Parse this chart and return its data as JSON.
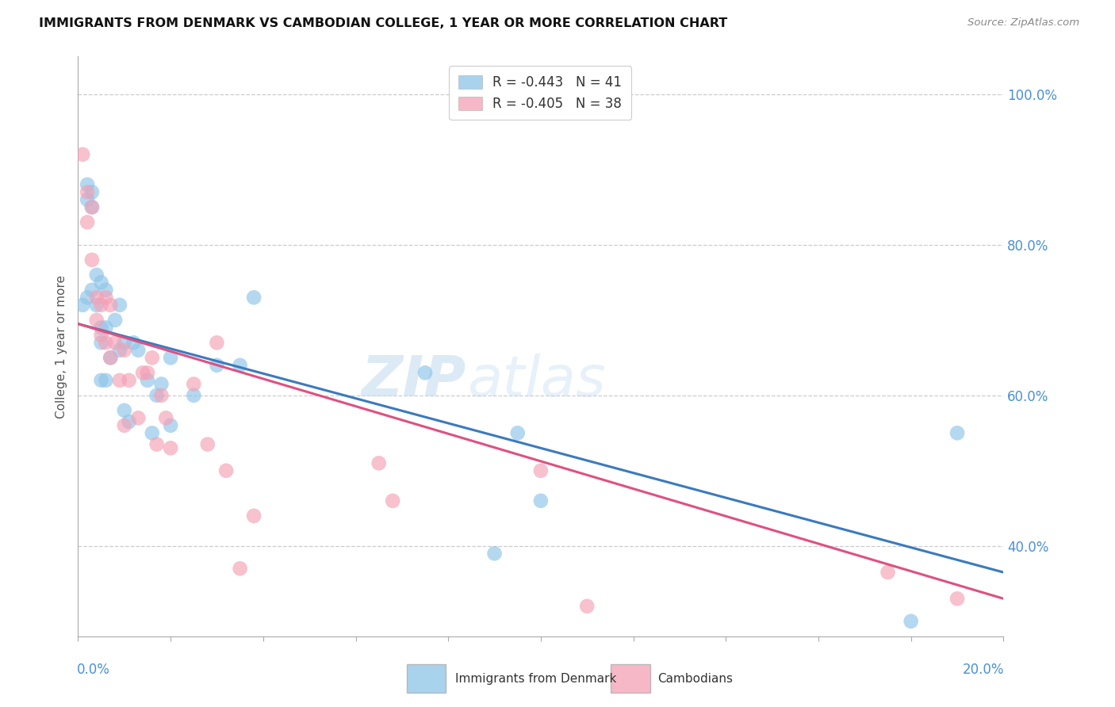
{
  "title": "IMMIGRANTS FROM DENMARK VS CAMBODIAN COLLEGE, 1 YEAR OR MORE CORRELATION CHART",
  "source": "Source: ZipAtlas.com",
  "ylabel": "College, 1 year or more",
  "right_yticks": [
    "100.0%",
    "80.0%",
    "60.0%",
    "40.0%"
  ],
  "right_ytick_vals": [
    1.0,
    0.8,
    0.6,
    0.4
  ],
  "xmin": 0.0,
  "xmax": 0.2,
  "ymin": 0.28,
  "ymax": 1.05,
  "denmark_R": -0.443,
  "denmark_N": 41,
  "cambodian_R": -0.405,
  "cambodian_N": 38,
  "legend_label1": "R = -0.443   N = 41",
  "legend_label2": "R = -0.405   N = 38",
  "denmark_color": "#8dc4e8",
  "cambodian_color": "#f4a0b5",
  "denmark_line_color": "#3a7abf",
  "cambodian_line_color": "#e05080",
  "watermark_zip": "ZIP",
  "watermark_atlas": "atlas",
  "denmark_line_x0": 0.0,
  "denmark_line_y0": 0.695,
  "denmark_line_x1": 0.2,
  "denmark_line_y1": 0.365,
  "cambodian_line_x0": 0.0,
  "cambodian_line_y0": 0.695,
  "cambodian_line_x1": 0.2,
  "cambodian_line_y1": 0.33,
  "denmark_x": [
    0.001,
    0.002,
    0.002,
    0.002,
    0.003,
    0.003,
    0.003,
    0.004,
    0.004,
    0.005,
    0.005,
    0.005,
    0.005,
    0.006,
    0.006,
    0.006,
    0.007,
    0.008,
    0.009,
    0.009,
    0.01,
    0.01,
    0.011,
    0.012,
    0.013,
    0.015,
    0.016,
    0.017,
    0.018,
    0.02,
    0.02,
    0.025,
    0.03,
    0.035,
    0.038,
    0.075,
    0.09,
    0.095,
    0.1,
    0.18,
    0.19
  ],
  "denmark_y": [
    0.72,
    0.88,
    0.86,
    0.73,
    0.87,
    0.85,
    0.74,
    0.76,
    0.72,
    0.75,
    0.69,
    0.67,
    0.62,
    0.74,
    0.69,
    0.62,
    0.65,
    0.7,
    0.66,
    0.72,
    0.67,
    0.58,
    0.565,
    0.67,
    0.66,
    0.62,
    0.55,
    0.6,
    0.615,
    0.65,
    0.56,
    0.6,
    0.64,
    0.64,
    0.73,
    0.63,
    0.39,
    0.55,
    0.46,
    0.3,
    0.55
  ],
  "cambodian_x": [
    0.001,
    0.002,
    0.002,
    0.003,
    0.003,
    0.004,
    0.004,
    0.005,
    0.005,
    0.006,
    0.006,
    0.007,
    0.007,
    0.008,
    0.009,
    0.01,
    0.01,
    0.011,
    0.013,
    0.014,
    0.015,
    0.016,
    0.017,
    0.018,
    0.019,
    0.02,
    0.025,
    0.028,
    0.03,
    0.032,
    0.035,
    0.038,
    0.065,
    0.068,
    0.1,
    0.11,
    0.175,
    0.19
  ],
  "cambodian_y": [
    0.92,
    0.87,
    0.83,
    0.85,
    0.78,
    0.73,
    0.7,
    0.72,
    0.68,
    0.73,
    0.67,
    0.72,
    0.65,
    0.67,
    0.62,
    0.66,
    0.56,
    0.62,
    0.57,
    0.63,
    0.63,
    0.65,
    0.535,
    0.6,
    0.57,
    0.53,
    0.615,
    0.535,
    0.67,
    0.5,
    0.37,
    0.44,
    0.51,
    0.46,
    0.5,
    0.32,
    0.365,
    0.33
  ]
}
